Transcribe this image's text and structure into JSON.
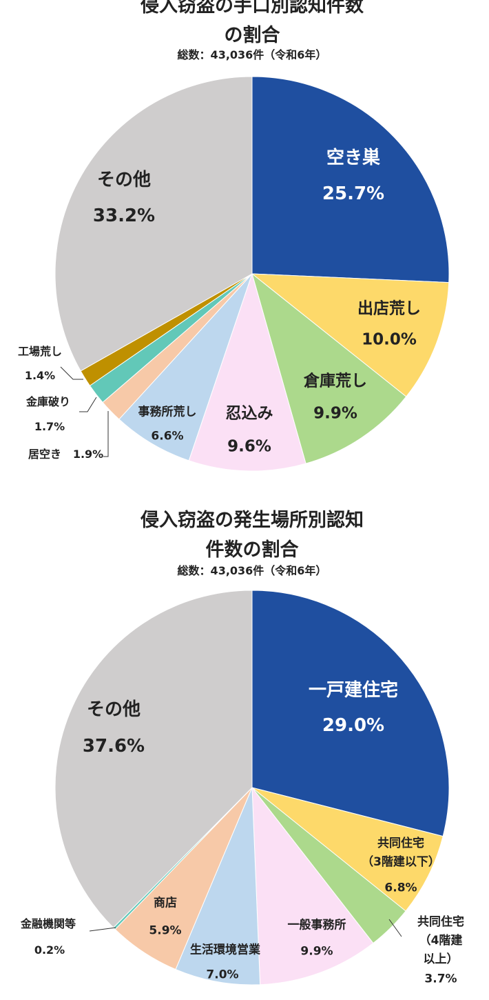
{
  "chart_data": [
    {
      "type": "pie",
      "title": "侵入窃盗の手口別認知件数の割合",
      "subtitle": "総数：43,036件（令和6年）",
      "categories": [
        "空き巣",
        "出店荒し",
        "倉庫荒し",
        "忍込み",
        "事務所荒し",
        "居空き",
        "金庫破り",
        "工場荒し",
        "その他"
      ],
      "values": [
        25.7,
        10.0,
        9.9,
        9.6,
        6.6,
        1.9,
        1.7,
        1.4,
        33.2
      ],
      "value_labels": [
        "25.7%",
        "10.0%",
        "9.9%",
        "9.6%",
        "6.6%",
        "1.9%",
        "1.7%",
        "1.4%",
        "33.2%"
      ],
      "colors": [
        "#1f4fa0",
        "#fdd96a",
        "#acd98c",
        "#fbe0f5",
        "#bdd7ee",
        "#f7c9a8",
        "#62c8b8",
        "#bf9000",
        "#cfcdcd"
      ]
    },
    {
      "type": "pie",
      "title": "侵入窃盗の発生場所別認知件数の割合",
      "subtitle": "総数：43,036件（令和6年）",
      "categories": [
        "一戸建住宅",
        "共同住宅\n（3階建以下）",
        "共同住宅\n（4階建以上）",
        "一般事務所",
        "生活環境営業",
        "商店",
        "金融機関等",
        "その他"
      ],
      "values": [
        29.0,
        6.8,
        3.7,
        9.9,
        7.0,
        5.9,
        0.2,
        37.6
      ],
      "value_labels": [
        "29.0%",
        "6.8%",
        "3.7%",
        "9.9%",
        "7.0%",
        "5.9%",
        "0.2%",
        "37.6%"
      ],
      "colors": [
        "#1f4fa0",
        "#fdd96a",
        "#acd98c",
        "#fbe0f5",
        "#bdd7ee",
        "#f7c9a8",
        "#62c8b8",
        "#cfcdcd"
      ]
    }
  ]
}
